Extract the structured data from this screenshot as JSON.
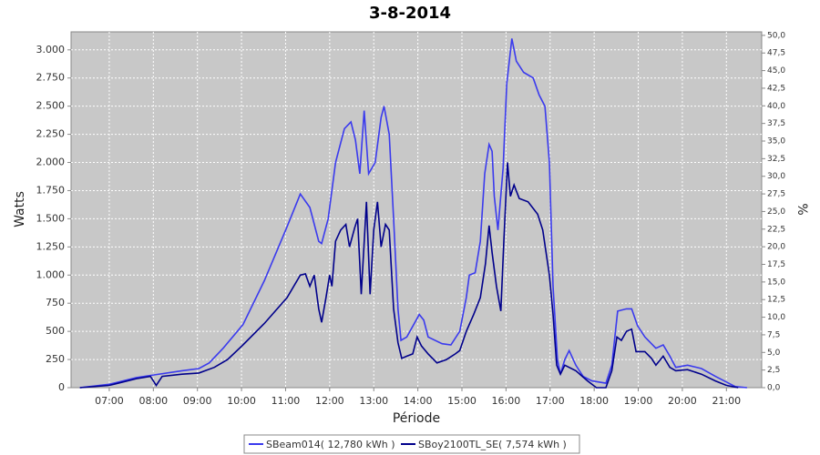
{
  "chart_data": {
    "type": "line",
    "title": "3-8-2014",
    "x_label": "Période",
    "y_label": "Watts",
    "y2_label": "%",
    "xlim": [
      "06:08",
      "21:48"
    ],
    "xticks": [
      "07:00",
      "08:00",
      "09:00",
      "10:00",
      "11:00",
      "12:00",
      "13:00",
      "14:00",
      "15:00",
      "16:00",
      "17:00",
      "18:00",
      "19:00",
      "20:00",
      "21:00"
    ],
    "ylim": [
      0,
      3160
    ],
    "yticks": [
      0,
      250,
      500,
      750,
      {
        "value": 1000,
        "label": "1.000"
      },
      {
        "value": 1250,
        "label": "1.250"
      },
      {
        "value": 1500,
        "label": "1.500"
      },
      {
        "value": 1750,
        "label": "1.750"
      },
      {
        "value": 2000,
        "label": "2.000"
      },
      {
        "value": 2250,
        "label": "2.250"
      },
      {
        "value": 2500,
        "label": "2.500"
      },
      {
        "value": 2750,
        "label": "2.750"
      },
      {
        "value": 3000,
        "label": "3.000"
      }
    ],
    "y2lim": [
      0,
      50.5
    ],
    "y2ticks": [
      {
        "value": 0,
        "label": "0,0"
      },
      {
        "value": 2.5,
        "label": "2,5"
      },
      {
        "value": 5,
        "label": "5,0"
      },
      {
        "value": 7.5,
        "label": "7,5"
      },
      {
        "value": 10,
        "label": "10,0"
      },
      {
        "value": 12.5,
        "label": "12,5"
      },
      {
        "value": 15,
        "label": "15,0"
      },
      {
        "value": 17.5,
        "label": "17,5"
      },
      {
        "value": 20,
        "label": "20,0"
      },
      {
        "value": 22.5,
        "label": "22,5"
      },
      {
        "value": 25,
        "label": "25,0"
      },
      {
        "value": 27.5,
        "label": "27,5"
      },
      {
        "value": 30,
        "label": "30,0"
      },
      {
        "value": 32.5,
        "label": "32,5"
      },
      {
        "value": 35,
        "label": "35,0"
      },
      {
        "value": 37.5,
        "label": "37,5"
      },
      {
        "value": 40,
        "label": "40,0"
      },
      {
        "value": 42.5,
        "label": "42,5"
      },
      {
        "value": 45,
        "label": "45,0"
      },
      {
        "value": 47.5,
        "label": "47,5"
      },
      {
        "value": 50,
        "label": "50,0"
      }
    ],
    "grid": true,
    "legend": "bottom",
    "series": [
      {
        "name": "SBeam014( 12,780 kWh )",
        "color": "#3a3aee",
        "x": [
          "06:20",
          "07:00",
          "07:37",
          "08:01",
          "08:39",
          "09:02",
          "09:16",
          "09:35",
          "10:02",
          "10:31",
          "11:02",
          "11:20",
          "11:33",
          "11:45",
          "11:49",
          "11:58",
          "12:08",
          "12:20",
          "12:29",
          "12:35",
          "12:41",
          "12:47",
          "12:53",
          "13:02",
          "13:10",
          "13:14",
          "13:21",
          "13:27",
          "13:33",
          "13:37",
          "13:45",
          "14:02",
          "14:08",
          "14:14",
          "14:33",
          "14:45",
          "14:57",
          "15:06",
          "15:10",
          "15:18",
          "15:25",
          "15:31",
          "15:37",
          "15:41",
          "15:44",
          "15:49",
          "15:56",
          "16:01",
          "16:08",
          "16:14",
          "16:24",
          "16:37",
          "16:45",
          "16:53",
          "16:59",
          "17:04",
          "17:10",
          "17:14",
          "17:20",
          "17:26",
          "17:35",
          "17:45",
          "17:57",
          "18:16",
          "18:24",
          "18:32",
          "18:44",
          "18:51",
          "18:59",
          "19:09",
          "19:24",
          "19:34",
          "19:43",
          "19:51",
          "20:07",
          "20:26",
          "20:45",
          "21:00",
          "21:12",
          "21:28"
        ],
        "values": [
          0,
          30,
          90,
          113,
          150,
          170,
          220,
          350,
          560,
          950,
          1430,
          1720,
          1600,
          1300,
          1280,
          1500,
          2000,
          2300,
          2360,
          2200,
          1900,
          2460,
          1900,
          2000,
          2400,
          2500,
          2250,
          1500,
          700,
          420,
          450,
          650,
          600,
          450,
          390,
          380,
          500,
          800,
          1000,
          1020,
          1300,
          1900,
          2160,
          2100,
          1700,
          1400,
          1950,
          2700,
          3100,
          2900,
          2800,
          2750,
          2600,
          2500,
          2000,
          900,
          250,
          120,
          250,
          330,
          200,
          100,
          60,
          40,
          200,
          680,
          700,
          700,
          550,
          450,
          350,
          380,
          280,
          180,
          200,
          170,
          100,
          50,
          10,
          0
        ]
      },
      {
        "name": "SBoy2100TL_SE( 7,574 kWh )",
        "color": "#00008b",
        "x": [
          "06:20",
          "07:00",
          "07:37",
          "07:56",
          "08:04",
          "08:12",
          "08:39",
          "09:02",
          "09:23",
          "09:41",
          "10:02",
          "10:31",
          "11:02",
          "11:20",
          "11:27",
          "11:33",
          "11:39",
          "11:45",
          "11:49",
          "11:55",
          "12:00",
          "12:03",
          "12:08",
          "12:15",
          "12:22",
          "12:27",
          "12:34",
          "12:38",
          "12:43",
          "12:50",
          "12:55",
          "13:00",
          "13:05",
          "13:10",
          "13:16",
          "13:21",
          "13:27",
          "13:33",
          "13:38",
          "13:45",
          "13:53",
          "13:59",
          "14:05",
          "14:14",
          "14:26",
          "14:39",
          "14:51",
          "14:57",
          "15:06",
          "15:16",
          "15:25",
          "15:32",
          "15:37",
          "15:41",
          "15:47",
          "15:53",
          "15:57",
          "16:02",
          "16:06",
          "16:11",
          "16:18",
          "16:30",
          "16:43",
          "16:50",
          "16:59",
          "17:04",
          "17:09",
          "17:14",
          "17:20",
          "17:35",
          "17:51",
          "18:03",
          "18:16",
          "18:24",
          "18:31",
          "18:37",
          "18:44",
          "18:51",
          "18:57",
          "19:09",
          "19:18",
          "19:24",
          "19:34",
          "19:43",
          "19:51",
          "20:07",
          "20:26",
          "20:45",
          "21:00",
          "21:16"
        ],
        "values": [
          0,
          20,
          80,
          100,
          20,
          100,
          120,
          130,
          180,
          250,
          380,
          570,
          800,
          1000,
          1010,
          900,
          1000,
          700,
          580,
          800,
          1000,
          900,
          1300,
          1400,
          1450,
          1250,
          1420,
          1500,
          830,
          1650,
          830,
          1400,
          1650,
          1250,
          1450,
          1400,
          700,
          400,
          260,
          280,
          300,
          450,
          370,
          300,
          220,
          250,
          300,
          330,
          500,
          650,
          800,
          1100,
          1440,
          1200,
          900,
          680,
          1300,
          2000,
          1700,
          1800,
          1680,
          1650,
          1540,
          1400,
          1000,
          650,
          200,
          120,
          200,
          150,
          60,
          0,
          0,
          150,
          450,
          420,
          500,
          520,
          320,
          320,
          260,
          200,
          280,
          180,
          150,
          160,
          120,
          60,
          20,
          0
        ]
      }
    ]
  }
}
